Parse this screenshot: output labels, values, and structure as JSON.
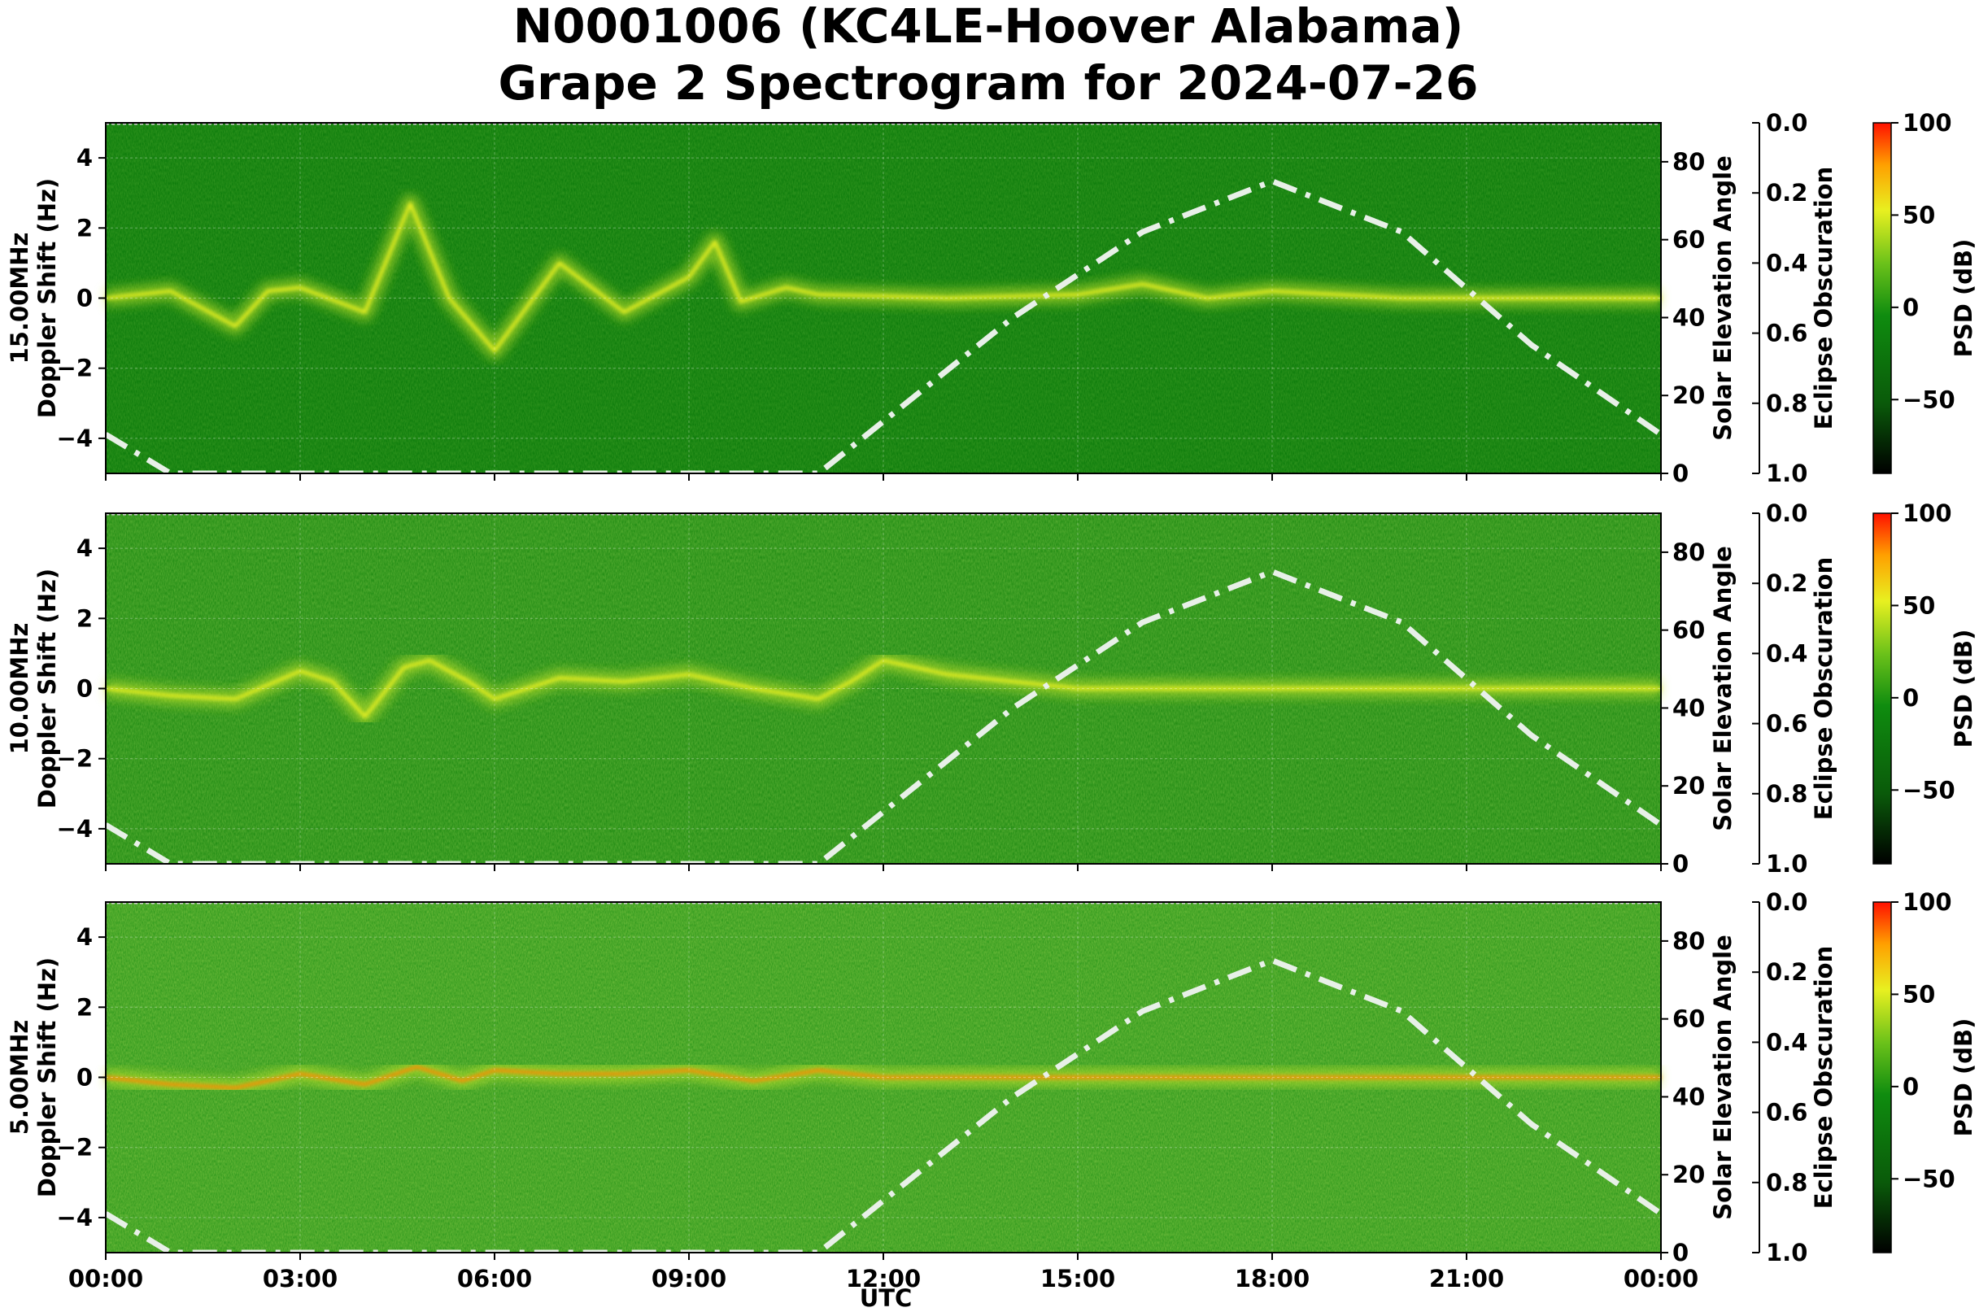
{
  "figure": {
    "title_line1": "N0001006 (KC4LE-Hoover Alabama)",
    "title_line2": "Grape 2 Spectrogram for 2024-07-26",
    "xlabel": "UTC",
    "x_ticks": [
      "00:00",
      "03:00",
      "06:00",
      "09:00",
      "12:00",
      "15:00",
      "18:00",
      "21:00",
      "00:00"
    ]
  },
  "chart_data": [
    {
      "type": "heatmap",
      "frequency_label": "15.00MHz",
      "ylabel": "Doppler Shift (Hz)",
      "ylim": [
        -5,
        5
      ],
      "y_ticks": [
        "4",
        "2",
        "0",
        "−2",
        "−4"
      ],
      "y2label": "Solar Elevation Angle",
      "y2lim": [
        0,
        90
      ],
      "y2_ticks": [
        "80",
        "60",
        "40",
        "20",
        "0"
      ],
      "y3label": "Eclipse Obscuration",
      "y3_ticks": [
        "0.0",
        "0.2",
        "0.4",
        "0.6",
        "0.8",
        "1.0"
      ],
      "cbar_label": "PSD (dB)",
      "cbar_ticks": [
        "100",
        "50",
        "0",
        "−50"
      ],
      "cbar_range": [
        -90,
        100
      ],
      "x_range_hours": [
        0,
        24
      ],
      "solar_elevation": {
        "x": [
          0,
          1,
          11,
          14,
          16,
          18,
          20,
          22,
          24
        ],
        "y": [
          10,
          0,
          0,
          40,
          62,
          75,
          62,
          33,
          10
        ]
      },
      "doppler_trace": {
        "x": [
          0,
          1,
          2,
          2.5,
          3,
          4,
          4.7,
          5.3,
          6,
          7,
          8,
          9,
          9.4,
          9.8,
          10.5,
          11,
          12,
          13,
          15,
          16,
          17,
          18,
          20,
          22,
          24
        ],
        "y": [
          0,
          0.2,
          -0.8,
          0.2,
          0.3,
          -0.4,
          2.7,
          0,
          -1.5,
          1,
          -0.4,
          0.6,
          1.6,
          -0.1,
          0.3,
          0.1,
          0.05,
          0,
          0.1,
          0.4,
          0,
          0.2,
          0,
          0,
          0
        ]
      }
    },
    {
      "type": "heatmap",
      "frequency_label": "10.00MHz",
      "ylabel": "Doppler Shift (Hz)",
      "ylim": [
        -5,
        5
      ],
      "y_ticks": [
        "4",
        "2",
        "0",
        "−2",
        "−4"
      ],
      "y2label": "Solar Elevation Angle",
      "y2lim": [
        0,
        90
      ],
      "y2_ticks": [
        "80",
        "60",
        "40",
        "20",
        "0"
      ],
      "y3label": "Eclipse Obscuration",
      "y3_ticks": [
        "0.0",
        "0.2",
        "0.4",
        "0.6",
        "0.8",
        "1.0"
      ],
      "cbar_label": "PSD (dB)",
      "cbar_ticks": [
        "100",
        "50",
        "0",
        "−50"
      ],
      "cbar_range": [
        -90,
        100
      ],
      "x_range_hours": [
        0,
        24
      ],
      "solar_elevation": {
        "x": [
          0,
          1,
          11,
          14,
          16,
          18,
          20,
          22,
          24
        ],
        "y": [
          10,
          0,
          0,
          40,
          62,
          75,
          62,
          33,
          10
        ]
      },
      "doppler_trace": {
        "x": [
          0,
          1,
          2,
          3,
          3.5,
          4,
          4.6,
          5,
          5.6,
          6,
          7,
          8,
          9,
          10,
          11,
          11.5,
          12,
          13,
          15,
          17.8,
          20,
          22,
          24
        ],
        "y": [
          0,
          -0.2,
          -0.3,
          0.5,
          0.2,
          -0.8,
          0.6,
          0.8,
          0.2,
          -0.3,
          0.3,
          0.2,
          0.4,
          0,
          -0.3,
          0.2,
          0.8,
          0.4,
          0,
          0,
          0,
          0,
          0
        ]
      }
    },
    {
      "type": "heatmap",
      "frequency_label": "5.00MHz",
      "ylabel": "Doppler Shift (Hz)",
      "ylim": [
        -5,
        5
      ],
      "y_ticks": [
        "4",
        "2",
        "0",
        "−2",
        "−4"
      ],
      "y2label": "Solar Elevation Angle",
      "y2lim": [
        0,
        90
      ],
      "y2_ticks": [
        "80",
        "60",
        "40",
        "20",
        "0"
      ],
      "y3label": "Eclipse Obscuration",
      "y3_ticks": [
        "0.0",
        "0.2",
        "0.4",
        "0.6",
        "0.8",
        "1.0"
      ],
      "cbar_label": "PSD (dB)",
      "cbar_ticks": [
        "100",
        "50",
        "0",
        "−50"
      ],
      "cbar_range": [
        -90,
        100
      ],
      "x_range_hours": [
        0,
        24
      ],
      "solar_elevation": {
        "x": [
          0,
          1,
          11,
          14,
          16,
          18,
          20,
          22,
          24
        ],
        "y": [
          10,
          0,
          0,
          40,
          62,
          75,
          62,
          33,
          10
        ]
      },
      "doppler_trace": {
        "x": [
          0,
          1,
          2,
          3,
          4,
          4.8,
          5.5,
          6,
          7,
          8,
          9,
          10,
          11,
          12,
          24
        ],
        "y": [
          0,
          -0.2,
          -0.3,
          0.1,
          -0.2,
          0.3,
          -0.1,
          0.2,
          0.1,
          0.1,
          0.2,
          -0.1,
          0.2,
          0,
          0
        ]
      }
    }
  ],
  "colors": {
    "background_green": "#0a7a0a",
    "signal_yellow": "#e8f020",
    "peak_red": "#ff2000",
    "solar_line": "#e8f0e8"
  }
}
